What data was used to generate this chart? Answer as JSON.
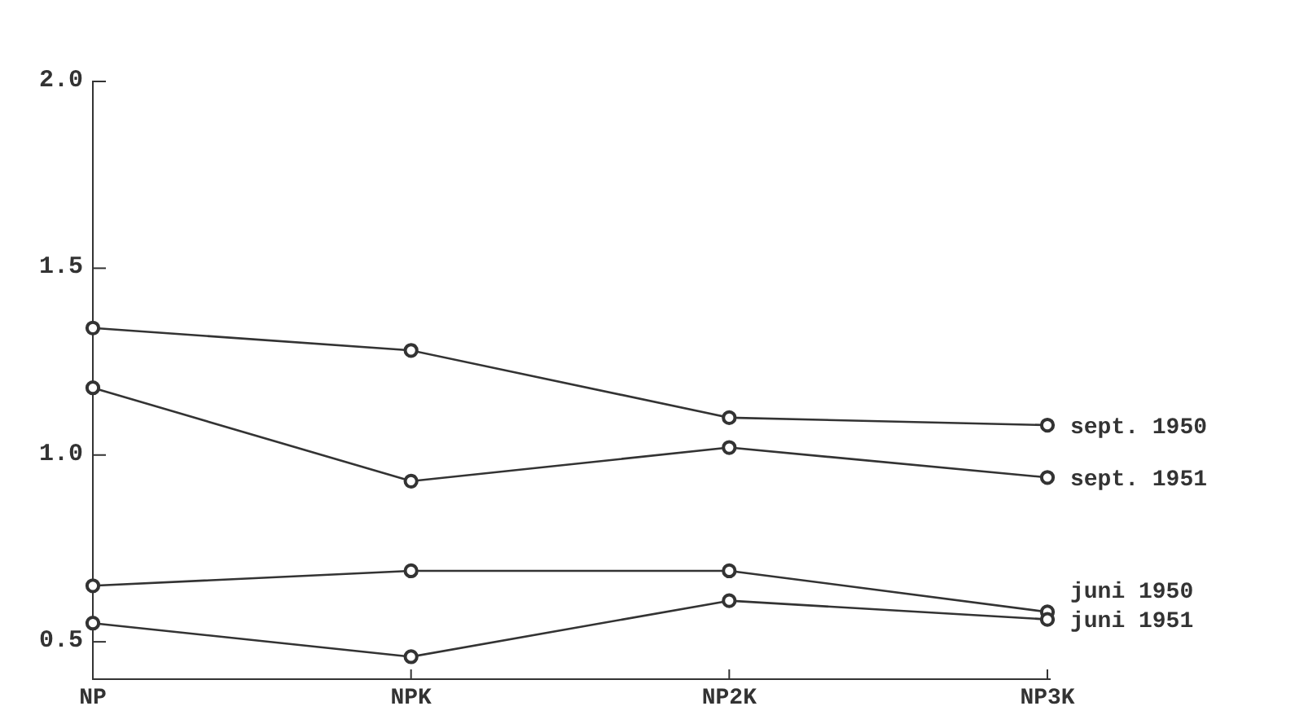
{
  "chart_data": {
    "type": "line",
    "categories": [
      "NP",
      "NPK",
      "NP2K",
      "NP3K"
    ],
    "ylim": [
      0.4,
      2.0
    ],
    "yticks": [
      {
        "value": 0.5,
        "label": "0.5"
      },
      {
        "value": 1.0,
        "label": "1.0"
      },
      {
        "value": 1.5,
        "label": "1.5"
      },
      {
        "value": 2.0,
        "label": "2.0"
      }
    ],
    "marker": "circle",
    "grid": false,
    "series": [
      {
        "name": "sept. 1950",
        "color": "#333333",
        "values": [
          1.34,
          1.28,
          1.1,
          1.08
        ]
      },
      {
        "name": "sept. 1951",
        "color": "#333333",
        "values": [
          1.18,
          0.93,
          1.02,
          0.94
        ]
      },
      {
        "name": "juni 1950",
        "color": "#333333",
        "values": [
          0.65,
          0.69,
          0.69,
          0.58
        ]
      },
      {
        "name": "juni 1951",
        "color": "#333333",
        "values": [
          0.55,
          0.46,
          0.61,
          0.56
        ]
      }
    ]
  }
}
